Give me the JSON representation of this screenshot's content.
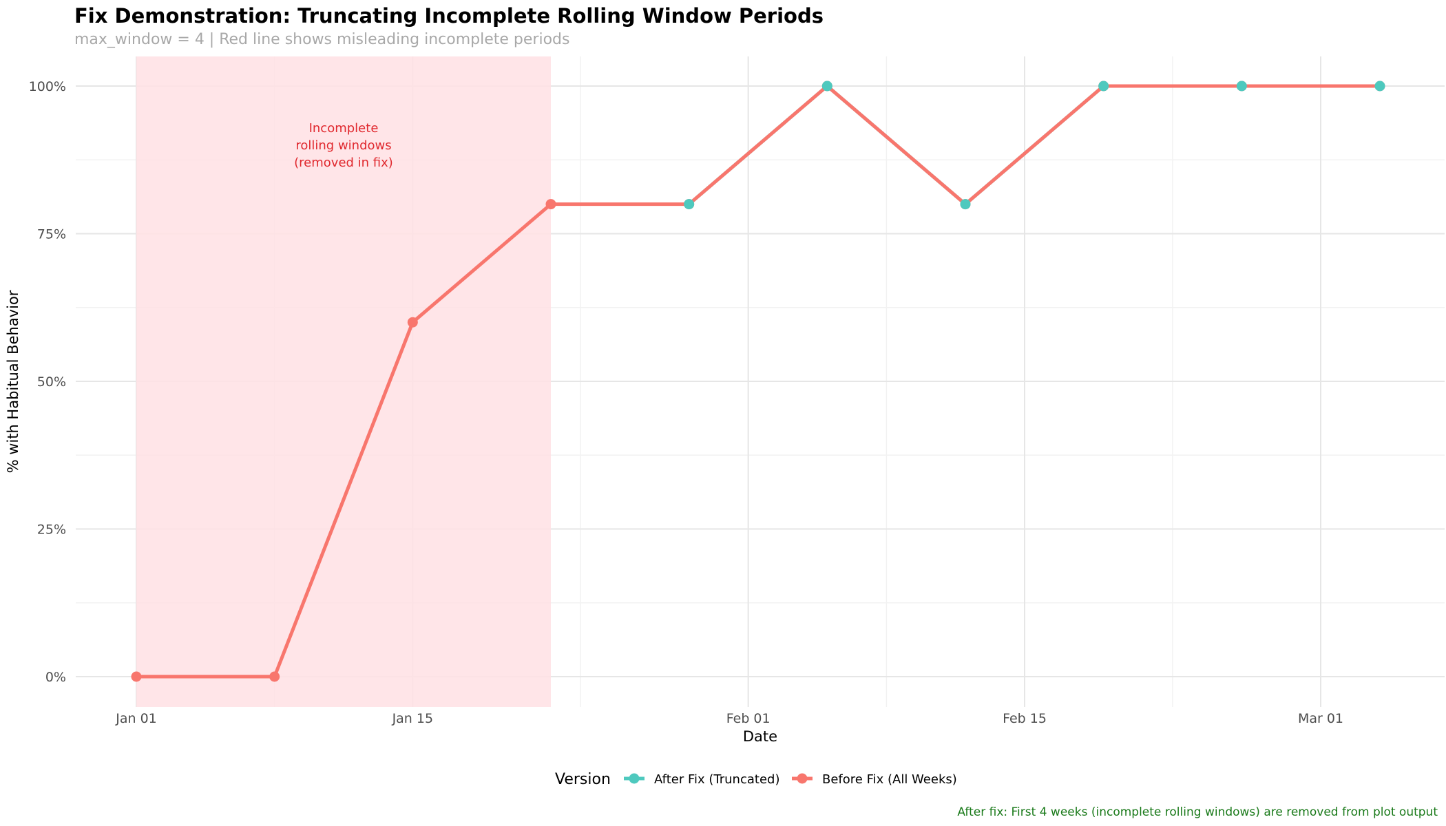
{
  "title": "Fix Demonstration: Truncating Incomplete Rolling Window Periods",
  "subtitle": "max_window = 4 | Red line shows misleading incomplete periods",
  "caption": "After fix: First 4 weeks (incomplete rolling windows) are removed from plot output",
  "colors": {
    "before": "#F8766D",
    "after": "#4EC9BE",
    "shade": "#FFE1E4",
    "annotation": "#E0282E",
    "caption": "#1A7A1A"
  },
  "chart_data": {
    "type": "line",
    "xlabel": "Date",
    "ylabel": "% with Habitual Behavior",
    "x_ticks": [
      "Jan 01",
      "Jan 15",
      "Feb 01",
      "Feb 15",
      "Mar 01"
    ],
    "y_ticks": [
      "0%",
      "25%",
      "50%",
      "75%",
      "100%"
    ],
    "ylim": [
      0,
      100
    ],
    "legend": {
      "title": "Version",
      "position": "bottom",
      "entries": [
        "After Fix (Truncated)",
        "Before Fix (All Weeks)"
      ]
    },
    "shaded_region": {
      "x_start": "2024-01-01",
      "x_end": "2024-01-22",
      "label_lines": [
        "Incomplete",
        "rolling windows",
        "(removed in fix)"
      ]
    },
    "series": [
      {
        "name": "Before Fix (All Weeks)",
        "points": [
          {
            "x": "2024-01-01",
            "y": 0
          },
          {
            "x": "2024-01-08",
            "y": 0
          },
          {
            "x": "2024-01-15",
            "y": 60
          },
          {
            "x": "2024-01-22",
            "y": 80
          },
          {
            "x": "2024-01-29",
            "y": 80
          },
          {
            "x": "2024-02-05",
            "y": 100
          },
          {
            "x": "2024-02-12",
            "y": 80
          },
          {
            "x": "2024-02-19",
            "y": 100
          },
          {
            "x": "2024-02-26",
            "y": 100
          },
          {
            "x": "2024-03-04",
            "y": 100
          }
        ]
      },
      {
        "name": "After Fix (Truncated)",
        "points": [
          {
            "x": "2024-01-29",
            "y": 80
          },
          {
            "x": "2024-02-05",
            "y": 100
          },
          {
            "x": "2024-02-12",
            "y": 80
          },
          {
            "x": "2024-02-19",
            "y": 100
          },
          {
            "x": "2024-02-26",
            "y": 100
          },
          {
            "x": "2024-03-04",
            "y": 100
          }
        ]
      }
    ]
  }
}
